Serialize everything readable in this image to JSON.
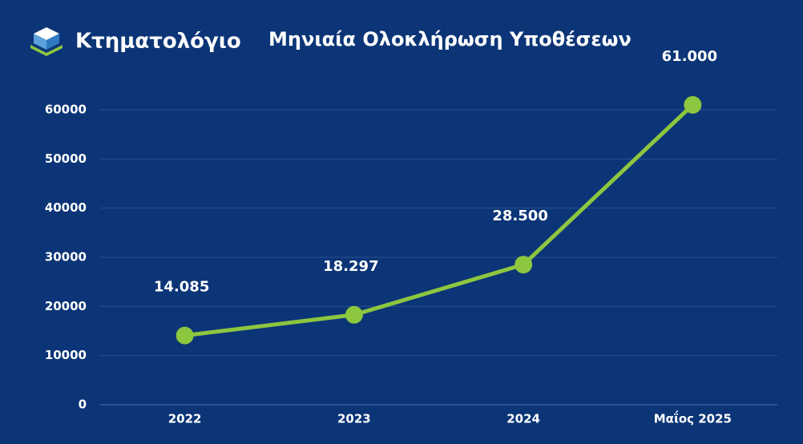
{
  "brand": "Κτηματολόγιο",
  "chart_data": {
    "type": "line",
    "title": "Μηνιαία Ολοκλήρωση Υποθέσεων",
    "categories": [
      "2022",
      "2023",
      "2024",
      "Μαΐος 2025"
    ],
    "values": [
      14085,
      18297,
      28500,
      61000
    ],
    "value_labels": [
      "14.085",
      "18.297",
      "28.500",
      "61.000"
    ],
    "color": "#8dc63f",
    "ylim": [
      0,
      60000
    ],
    "yticks": [
      0,
      10000,
      20000,
      30000,
      40000,
      50000,
      60000
    ],
    "grid": true
  }
}
